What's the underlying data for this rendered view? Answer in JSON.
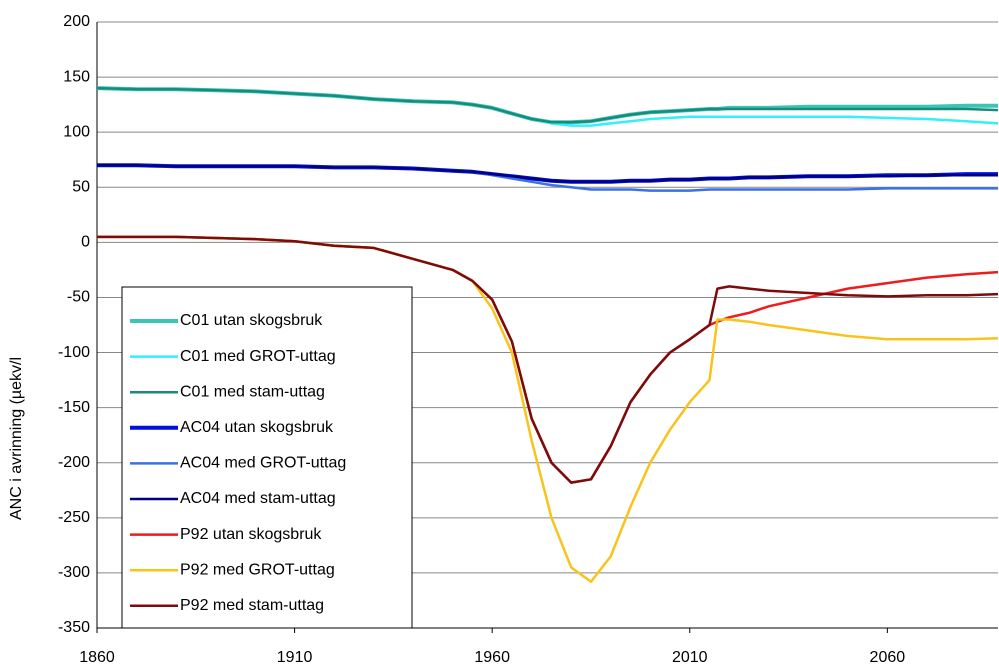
{
  "chart_data": {
    "type": "line",
    "ylabel": "ANC i avrinning (µekv/l",
    "x": [
      1860,
      1870,
      1880,
      1890,
      1900,
      1910,
      1920,
      1930,
      1940,
      1950,
      1955,
      1960,
      1965,
      1970,
      1975,
      1980,
      1985,
      1990,
      1995,
      2000,
      2005,
      2010,
      2015,
      2017,
      2020,
      2025,
      2030,
      2040,
      2050,
      2060,
      2070,
      2080,
      2088
    ],
    "xlim": [
      1860,
      2088
    ],
    "xticks": [
      1860,
      1910,
      1960,
      2010,
      2060
    ],
    "ylim": [
      -350,
      200
    ],
    "yticks": [
      -350,
      -300,
      -250,
      -200,
      -150,
      -100,
      -50,
      0,
      50,
      100,
      150,
      200
    ],
    "grid": true,
    "legend": "lower left",
    "series": [
      {
        "name": "C01 utan skogsbruk",
        "color": "#3cc4b4",
        "width": 4,
        "values": [
          140,
          139,
          139,
          138,
          137,
          135,
          133,
          130,
          128,
          127,
          125,
          122,
          117,
          112,
          109,
          109,
          110,
          113,
          116,
          118,
          119,
          120,
          121,
          121,
          122,
          122,
          122,
          123,
          123,
          123,
          123,
          124,
          124
        ]
      },
      {
        "name": "C01 med GROT-uttag",
        "color": "#33f0f8",
        "width": 2.5,
        "values": [
          140,
          139,
          139,
          138,
          137,
          135,
          133,
          130,
          128,
          127,
          125,
          122,
          117,
          112,
          108,
          106,
          106,
          108,
          110,
          112,
          113,
          114,
          114,
          114,
          114,
          114,
          114,
          114,
          114,
          113,
          112,
          110,
          108
        ]
      },
      {
        "name": "C01 med stam-uttag",
        "color": "#178c7c",
        "width": 2.5,
        "values": [
          140,
          139,
          139,
          138,
          137,
          135,
          133,
          130,
          128,
          127,
          125,
          122,
          117,
          112,
          109,
          109,
          110,
          113,
          116,
          118,
          119,
          120,
          121,
          121,
          121,
          121,
          121,
          121,
          121,
          121,
          121,
          121,
          120
        ]
      },
      {
        "name": "AC04 utan skogsbruk",
        "color": "#0010e0",
        "width": 4,
        "values": [
          70,
          70,
          69,
          69,
          69,
          69,
          68,
          68,
          67,
          65,
          64,
          62,
          60,
          58,
          56,
          55,
          55,
          55,
          56,
          56,
          57,
          57,
          58,
          58,
          58,
          59,
          59,
          60,
          60,
          61,
          61,
          62,
          62
        ]
      },
      {
        "name": "AC04 med GROT-uttag",
        "color": "#3c70e8",
        "width": 2.5,
        "values": [
          70,
          70,
          69,
          69,
          69,
          69,
          68,
          68,
          67,
          65,
          64,
          61,
          58,
          55,
          52,
          50,
          48,
          48,
          48,
          47,
          47,
          47,
          48,
          48,
          48,
          48,
          48,
          48,
          48,
          49,
          49,
          49,
          49
        ]
      },
      {
        "name": "AC04 med stam-uttag",
        "color": "#000080",
        "width": 2.5,
        "values": [
          70,
          70,
          69,
          69,
          69,
          69,
          68,
          68,
          67,
          65,
          64,
          62,
          60,
          58,
          56,
          55,
          55,
          55,
          56,
          56,
          57,
          57,
          58,
          58,
          58,
          59,
          59,
          60,
          60,
          60,
          61,
          61,
          61
        ]
      },
      {
        "name": "P92 utan skogsbruk",
        "color": "#ee1c1c",
        "width": 2.5,
        "values": [
          5,
          5,
          5,
          4,
          3,
          1,
          -3,
          -5,
          -15,
          -25,
          -35,
          -52,
          -90,
          -160,
          -200,
          -218,
          -215,
          -185,
          -145,
          -120,
          -100,
          -88,
          -75,
          -72,
          -68,
          -64,
          -58,
          -50,
          -42,
          -37,
          -32,
          -29,
          -27
        ]
      },
      {
        "name": "P92 med GROT-uttag",
        "color": "#f8c41c",
        "width": 2.5,
        "values": [
          5,
          5,
          5,
          4,
          3,
          1,
          -3,
          -5,
          -15,
          -25,
          -35,
          -60,
          -100,
          -180,
          -250,
          -295,
          -308,
          -285,
          -240,
          -200,
          -170,
          -145,
          -125,
          -70,
          -70,
          -72,
          -75,
          -80,
          -85,
          -88,
          -88,
          -88,
          -87
        ]
      },
      {
        "name": "P92 med stam-uttag",
        "color": "#7c0c0c",
        "width": 2.5,
        "values": [
          5,
          5,
          5,
          4,
          3,
          1,
          -3,
          -5,
          -15,
          -25,
          -35,
          -52,
          -90,
          -160,
          -200,
          -218,
          -215,
          -185,
          -145,
          -120,
          -100,
          -88,
          -75,
          -42,
          -40,
          -42,
          -44,
          -46,
          -48,
          -49,
          -48,
          -48,
          -47
        ]
      }
    ]
  }
}
